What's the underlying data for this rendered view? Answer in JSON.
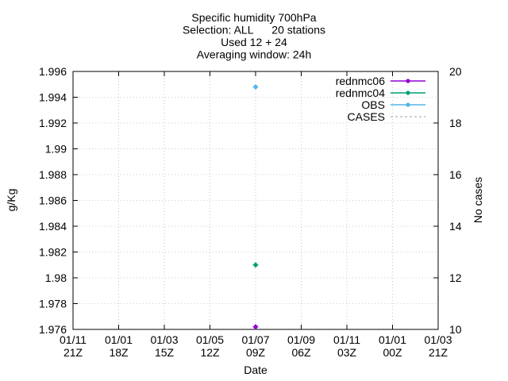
{
  "chart_data": {
    "type": "line",
    "title_lines": [
      "Specific humidity 700hPa",
      "Selection: ALL      20 stations",
      "Used 12 + 24",
      "Averaging window: 24h"
    ],
    "xlabel": "Date",
    "ylabel": "g/Kg",
    "y2label": "No cases",
    "ylim": [
      1.976,
      1.996
    ],
    "y_ticks": [
      "1.976",
      "1.978",
      "1.98",
      "1.982",
      "1.984",
      "1.986",
      "1.988",
      "1.99",
      "1.992",
      "1.994",
      "1.996"
    ],
    "y2lim": [
      10,
      20
    ],
    "y2_ticks": [
      "10",
      "12",
      "14",
      "16",
      "18",
      "20"
    ],
    "x_ticks": [
      {
        "top": "01/11",
        "bottom": "21Z"
      },
      {
        "top": "01/01",
        "bottom": "18Z"
      },
      {
        "top": "01/03",
        "bottom": "15Z"
      },
      {
        "top": "01/05",
        "bottom": "12Z"
      },
      {
        "top": "01/07",
        "bottom": "09Z"
      },
      {
        "top": "01/09",
        "bottom": "06Z"
      },
      {
        "top": "01/11",
        "bottom": "03Z"
      },
      {
        "top": "01/01",
        "bottom": "00Z"
      },
      {
        "top": "01/03",
        "bottom": "21Z"
      }
    ],
    "grid": true,
    "legend_position": "top-right",
    "series": [
      {
        "name": "rednmc06",
        "color": "#9400d3",
        "x_tick_index": 4,
        "values": [
          1.9762
        ]
      },
      {
        "name": "rednmc04",
        "color": "#009e73",
        "x_tick_index": 4,
        "values": [
          1.981
        ]
      },
      {
        "name": "OBS",
        "color": "#56b4e9",
        "x_tick_index": 4,
        "values": [
          1.9948
        ]
      },
      {
        "name": "CASES",
        "color": "#a0a0a0",
        "dashed": true,
        "values": []
      }
    ]
  }
}
